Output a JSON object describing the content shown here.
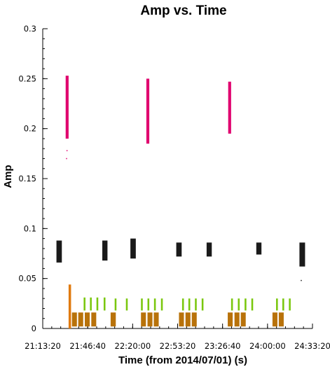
{
  "chart_data": {
    "type": "scatter",
    "title": "Amp vs. Time",
    "xlabel": "Time (from 2014/07/01) (s)",
    "ylabel": "Amp",
    "x_ticks": [
      "21:13:20",
      "21:46:40",
      "22:20:00",
      "22:53:20",
      "23:26:40",
      "24:00:00",
      "24:33:20"
    ],
    "x_tick_seconds": [
      76400,
      78400,
      80400,
      82400,
      84400,
      86400,
      88400
    ],
    "xlim": [
      76400,
      88400
    ],
    "y_ticks": [
      "0",
      "0.05",
      "0.1",
      "0.15",
      "0.2",
      "0.25",
      "0.3"
    ],
    "y_tick_values": [
      0,
      0.05,
      0.1,
      0.15,
      0.2,
      0.25,
      0.3
    ],
    "ylim": [
      0,
      0.3
    ],
    "series": [
      {
        "color": "#e0006e",
        "bands": [
          {
            "x": [
              77420,
              77550
            ],
            "y": [
              0.19,
              0.253
            ]
          },
          {
            "x": [
              81010,
              81140
            ],
            "y": [
              0.185,
              0.25
            ]
          },
          {
            "x": [
              84650,
              84780
            ],
            "y": [
              0.195,
              0.247
            ]
          }
        ],
        "outliers": [
          {
            "x": 77460,
            "y": 0.17
          },
          {
            "x": 77480,
            "y": 0.178
          }
        ]
      },
      {
        "color": "#1a1a1a",
        "bands": [
          {
            "x": [
              77010,
              77250
            ],
            "y": [
              0.066,
              0.088
            ]
          },
          {
            "x": [
              79050,
              79280
            ],
            "y": [
              0.068,
              0.088
            ]
          },
          {
            "x": [
              80300,
              80540
            ],
            "y": [
              0.07,
              0.09
            ]
          },
          {
            "x": [
              82340,
              82580
            ],
            "y": [
              0.072,
              0.086
            ]
          },
          {
            "x": [
              83690,
              83920
            ],
            "y": [
              0.072,
              0.086
            ]
          },
          {
            "x": [
              85900,
              86130
            ],
            "y": [
              0.074,
              0.086
            ]
          },
          {
            "x": [
              87820,
              88070
            ],
            "y": [
              0.062,
              0.086
            ]
          }
        ],
        "outliers": [
          {
            "x": 87900,
            "y": 0.048
          }
        ]
      },
      {
        "color": "#7ac70e",
        "bands": [
          {
            "x": [
              78220,
              78300
            ],
            "y": [
              0.018,
              0.031
            ]
          },
          {
            "x": [
              78500,
              78580
            ],
            "y": [
              0.018,
              0.031
            ]
          },
          {
            "x": [
              78790,
              78870
            ],
            "y": [
              0.018,
              0.031
            ]
          },
          {
            "x": [
              79110,
              79190
            ],
            "y": [
              0.018,
              0.031
            ]
          },
          {
            "x": [
              79600,
              79680
            ],
            "y": [
              0.018,
              0.03
            ]
          },
          {
            "x": [
              80100,
              80180
            ],
            "y": [
              0.018,
              0.03
            ]
          },
          {
            "x": [
              80770,
              80850
            ],
            "y": [
              0.018,
              0.03
            ]
          },
          {
            "x": [
              81060,
              81140
            ],
            "y": [
              0.018,
              0.03
            ]
          },
          {
            "x": [
              81350,
              81430
            ],
            "y": [
              0.018,
              0.03
            ]
          },
          {
            "x": [
              81660,
              81740
            ],
            "y": [
              0.018,
              0.03
            ]
          },
          {
            "x": [
              82600,
              82680
            ],
            "y": [
              0.018,
              0.03
            ]
          },
          {
            "x": [
              82880,
              82960
            ],
            "y": [
              0.018,
              0.03
            ]
          },
          {
            "x": [
              83170,
              83250
            ],
            "y": [
              0.018,
              0.03
            ]
          },
          {
            "x": [
              83470,
              83550
            ],
            "y": [
              0.018,
              0.03
            ]
          },
          {
            "x": [
              84780,
              84860
            ],
            "y": [
              0.018,
              0.03
            ]
          },
          {
            "x": [
              85080,
              85160
            ],
            "y": [
              0.018,
              0.03
            ]
          },
          {
            "x": [
              85380,
              85460
            ],
            "y": [
              0.018,
              0.03
            ]
          },
          {
            "x": [
              85680,
              85760
            ],
            "y": [
              0.018,
              0.03
            ]
          },
          {
            "x": [
              86780,
              86860
            ],
            "y": [
              0.018,
              0.03
            ]
          },
          {
            "x": [
              87060,
              87140
            ],
            "y": [
              0.018,
              0.03
            ]
          },
          {
            "x": [
              87350,
              87430
            ],
            "y": [
              0.018,
              0.03
            ]
          }
        ],
        "outliers": []
      },
      {
        "color": "#b8720a",
        "bands": [
          {
            "x": [
              77700,
              77920
            ],
            "y": [
              0.002,
              0.016
            ]
          },
          {
            "x": [
              77980,
              78200
            ],
            "y": [
              0.002,
              0.016
            ]
          },
          {
            "x": [
              78270,
              78490
            ],
            "y": [
              0.002,
              0.016
            ]
          },
          {
            "x": [
              78560,
              78780
            ],
            "y": [
              0.002,
              0.016
            ]
          },
          {
            "x": [
              79420,
              79650
            ],
            "y": [
              0.002,
              0.016
            ]
          },
          {
            "x": [
              80770,
              80990
            ],
            "y": [
              0.002,
              0.016
            ]
          },
          {
            "x": [
              81060,
              81280
            ],
            "y": [
              0.002,
              0.016
            ]
          },
          {
            "x": [
              81340,
              81560
            ],
            "y": [
              0.002,
              0.016
            ]
          },
          {
            "x": [
              82460,
              82680
            ],
            "y": [
              0.002,
              0.016
            ]
          },
          {
            "x": [
              82750,
              82970
            ],
            "y": [
              0.002,
              0.016
            ]
          },
          {
            "x": [
              83030,
              83250
            ],
            "y": [
              0.002,
              0.016
            ]
          },
          {
            "x": [
              84630,
              84850
            ],
            "y": [
              0.002,
              0.016
            ]
          },
          {
            "x": [
              84930,
              85150
            ],
            "y": [
              0.002,
              0.016
            ]
          },
          {
            "x": [
              85210,
              85430
            ],
            "y": [
              0.002,
              0.016
            ]
          },
          {
            "x": [
              86620,
              86840
            ],
            "y": [
              0.002,
              0.016
            ]
          },
          {
            "x": [
              86900,
              87120
            ],
            "y": [
              0.002,
              0.016
            ]
          }
        ],
        "outliers": []
      },
      {
        "color": "#e07a10",
        "bands": [
          {
            "x": [
              77550,
              77660
            ],
            "y": [
              0.0,
              0.044
            ]
          }
        ],
        "outliers": []
      }
    ]
  }
}
